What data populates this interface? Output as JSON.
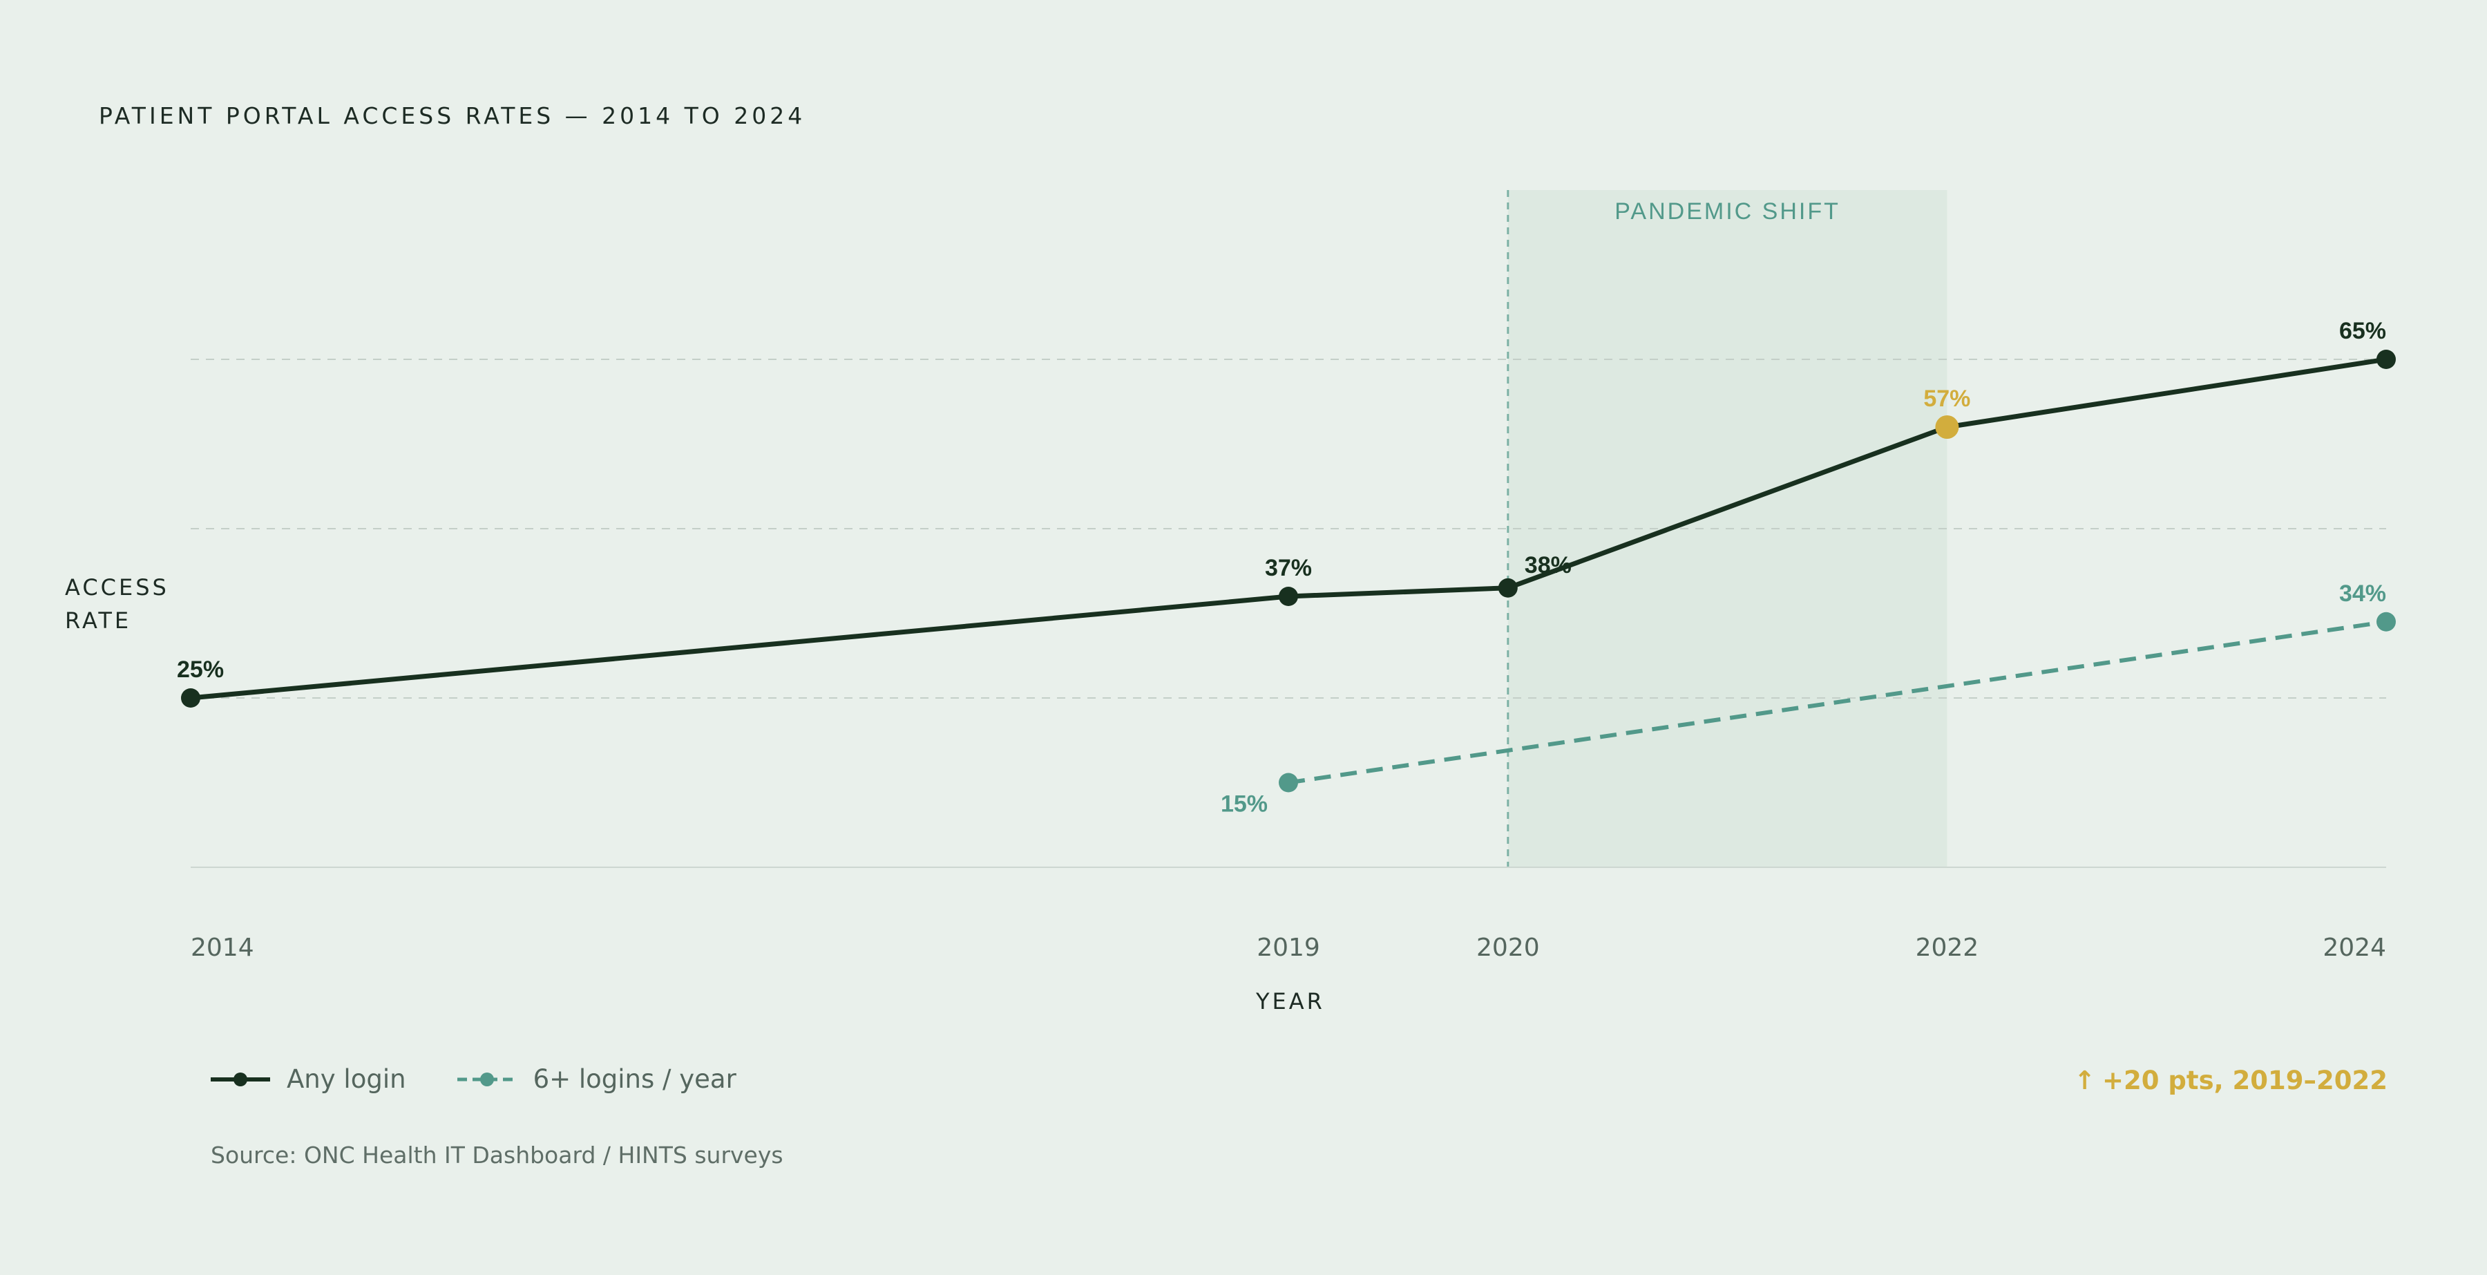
{
  "colors": {
    "background": "#e9f0eb",
    "primary_line": "#18301f",
    "secondary_line": "#52998a",
    "highlight": "#d2ad3d",
    "band": "#dde9e1"
  },
  "chart_data": {
    "type": "line",
    "title": "PATIENT PORTAL ACCESS RATES — 2014 TO 2024",
    "xlabel": "YEAR",
    "ylabel": "ACCESS RATE",
    "x_ticks": [
      "2014",
      "2019",
      "2020",
      "2022",
      "2024"
    ],
    "xlim": [
      2014,
      2024
    ],
    "ylim": [
      5,
      85
    ],
    "grid": "horizontal dashed",
    "legend_position": "bottom-left",
    "shaded_region": {
      "from": 2020,
      "to": 2022,
      "label": "PANDEMIC SHIFT"
    },
    "series": [
      {
        "name": "Any login",
        "style": "solid",
        "x": [
          2014,
          2019,
          2020,
          2022,
          2024
        ],
        "y": [
          25,
          37,
          38,
          57,
          65
        ],
        "labels": [
          "25%",
          "37%",
          "38%",
          "57%",
          "65%"
        ],
        "highlight_index": 3
      },
      {
        "name": "6+ logins / year",
        "style": "dashed",
        "x": [
          2019,
          2024
        ],
        "y": [
          15,
          34
        ],
        "labels": [
          "15%",
          "34%"
        ]
      }
    ]
  },
  "annotation": {
    "arrow": "↑",
    "text": "+20 pts, 2019–2022"
  },
  "source": "Source: ONC Health IT Dashboard / HINTS surveys"
}
